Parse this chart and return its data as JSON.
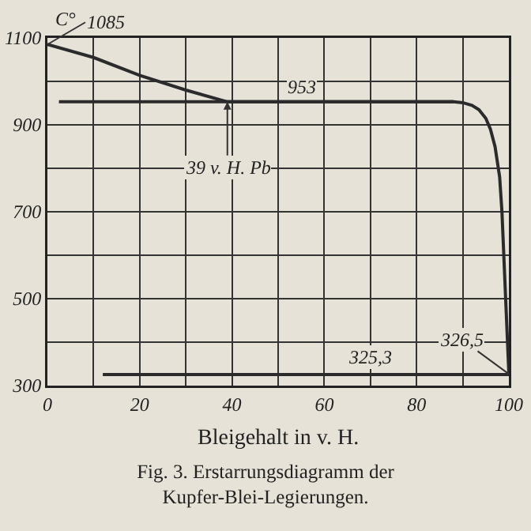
{
  "chart_data": {
    "type": "line",
    "title": "Fig. 3. Erstarrungsdiagramm der Kupfer-Blei-Legierungen.",
    "xlabel": "Bleigehalt in v. H.",
    "ylabel": "C°",
    "series": [
      {
        "color": "#2b2b2b",
        "x": [
          0,
          10,
          20,
          30,
          39,
          60,
          80,
          88,
          90,
          92,
          93.5,
          95,
          96,
          97,
          98,
          98.5,
          99.3,
          100
        ],
        "values": [
          1085,
          1055,
          1014,
          980,
          953,
          953,
          953,
          953,
          951,
          945,
          935,
          915,
          890,
          850,
          780,
          700,
          500,
          326.5
        ]
      },
      {
        "color": "#2b2b2b",
        "x": [
          2.5,
          88
        ],
        "values": [
          953,
          953
        ]
      },
      {
        "color": "#2b2b2b",
        "x": [
          12,
          100
        ],
        "values": [
          325.3,
          325.3
        ]
      }
    ],
    "annotations": [
      {
        "text": "1085",
        "x": 0,
        "y": 1085
      },
      {
        "text": "953",
        "x": 55,
        "y": 953
      },
      {
        "text": "39 v. H. Pb",
        "x": 39,
        "y": 953
      },
      {
        "text": "326,5",
        "x": 100,
        "y": 326.5
      },
      {
        "text": "325,3",
        "x": 70,
        "y": 325.3
      }
    ],
    "xlim": [
      0,
      100
    ],
    "ylim": [
      300,
      1100
    ],
    "xticks": [
      0,
      {
        "value": 10,
        "label": null
      },
      20,
      {
        "value": 30,
        "label": null
      },
      40,
      {
        "value": 50,
        "label": null
      },
      60,
      {
        "value": 70,
        "label": null
      },
      80,
      {
        "value": 90,
        "label": null
      },
      100
    ],
    "yticks": [
      300,
      {
        "value": 400,
        "label": null
      },
      500,
      {
        "value": 600,
        "label": null
      },
      700,
      {
        "value": 800,
        "label": null
      },
      900,
      {
        "value": 1000,
        "label": null
      },
      1100
    ],
    "grid": true,
    "marker": "none",
    "line_style": "solid"
  }
}
